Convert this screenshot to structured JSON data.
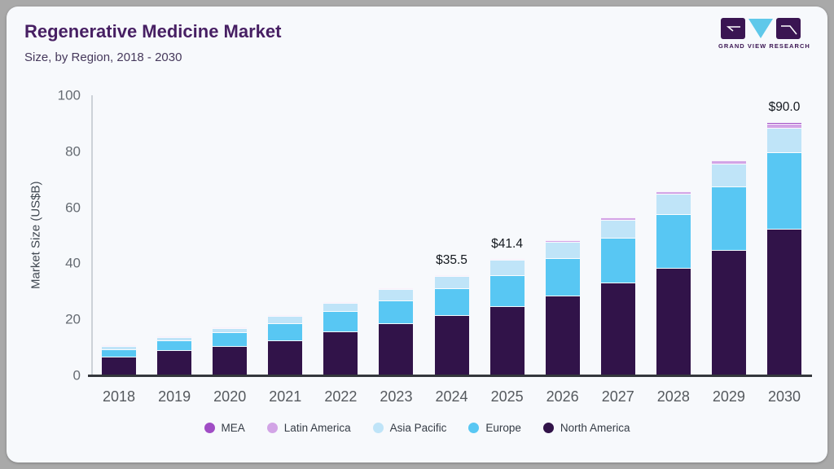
{
  "header": {
    "title": "Regenerative Medicine Market",
    "subtitle": "Size, by Region, 2018 - 2030",
    "logo_text": "GRAND VIEW RESEARCH"
  },
  "colors": {
    "card_background": "#f7f9fc",
    "page_background": "#a9a9a9",
    "title_text": "#471f63",
    "logo_purple": "#3a1552",
    "logo_blue": "#5fc8ea",
    "axis_line": "#34373c",
    "y_axis_line": "#ccd2d8"
  },
  "chart_data": {
    "type": "bar",
    "stacked": true,
    "title": "Regenerative Medicine Market Size, by Region, 2018 - 2030",
    "xlabel": "",
    "ylabel": "Market Size (US$B)",
    "ylim": [
      0,
      100
    ],
    "yticks": [
      0,
      20,
      40,
      60,
      80,
      100
    ],
    "grid": false,
    "legend_position": "bottom",
    "legend_order": [
      "MEA",
      "Latin America",
      "Asia Pacific",
      "Europe",
      "North America"
    ],
    "categories": [
      "2018",
      "2019",
      "2020",
      "2021",
      "2022",
      "2023",
      "2024",
      "2025",
      "2026",
      "2027",
      "2028",
      "2029",
      "2030"
    ],
    "series": [
      {
        "name": "North America",
        "color": "#311349",
        "values": [
          6.4,
          8.6,
          10.1,
          12.2,
          15.5,
          18.3,
          21.2,
          24.3,
          28.2,
          32.9,
          38.2,
          44.5,
          52.1
        ]
      },
      {
        "name": "Europe",
        "color": "#58c7f3",
        "values": [
          2.7,
          3.6,
          4.9,
          6.2,
          7.3,
          8.3,
          9.7,
          11.3,
          13.3,
          15.8,
          19.2,
          22.6,
          27.2
        ]
      },
      {
        "name": "Asia Pacific",
        "color": "#bfe4f8",
        "values": [
          1.0,
          1.3,
          1.7,
          2.4,
          2.9,
          3.8,
          4.2,
          5.3,
          5.9,
          6.6,
          7.1,
          8.1,
          8.9
        ]
      },
      {
        "name": "Latin America",
        "color": "#d2a4e6",
        "values": [
          0.13,
          0.14,
          0.14,
          0.2,
          0.2,
          0.3,
          0.3,
          0.4,
          0.7,
          0.8,
          1.0,
          1.2,
          1.3
        ]
      },
      {
        "name": "MEA",
        "color": "#a04dc5",
        "values": [
          0.07,
          0.06,
          0.06,
          0.1,
          0.1,
          0.1,
          0.1,
          0.1,
          0.2,
          0.2,
          0.3,
          0.4,
          0.5
        ]
      }
    ],
    "totals": [
      10.3,
      13.7,
      16.9,
      21.1,
      26.0,
      30.8,
      35.5,
      41.4,
      48.3,
      56.3,
      65.8,
      76.8,
      90.0
    ],
    "bar_value_labels": {
      "2024": "$35.5",
      "2025": "$41.4",
      "2030": "$90.0"
    }
  }
}
